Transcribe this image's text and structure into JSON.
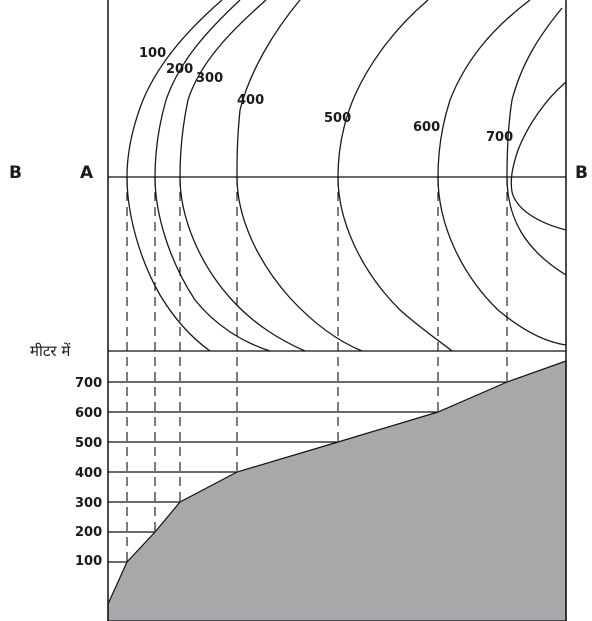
{
  "section_labels": {
    "left_outer": "B",
    "left_inner": "A",
    "right": "B"
  },
  "unit_label": "मीटर में",
  "contours": [
    {
      "value": "100"
    },
    {
      "value": "200"
    },
    {
      "value": "300"
    },
    {
      "value": "400"
    },
    {
      "value": "500"
    },
    {
      "value": "600"
    },
    {
      "value": "700"
    }
  ],
  "elevation_ticks": [
    "700",
    "600",
    "500",
    "400",
    "300",
    "200",
    "100"
  ],
  "profile": {
    "fill_color": "#a7a8aa",
    "points_m": [
      {
        "dist": 0,
        "elev": -40
      },
      {
        "dist": 1,
        "elev": 100
      },
      {
        "dist": 2,
        "elev": 200
      },
      {
        "dist": 3,
        "elev": 300
      },
      {
        "dist": 4,
        "elev": 400
      },
      {
        "dist": 5,
        "elev": 500
      },
      {
        "dist": 6,
        "elev": 600
      },
      {
        "dist": 7,
        "elev": 700
      },
      {
        "dist": 8,
        "elev": 770
      }
    ]
  }
}
